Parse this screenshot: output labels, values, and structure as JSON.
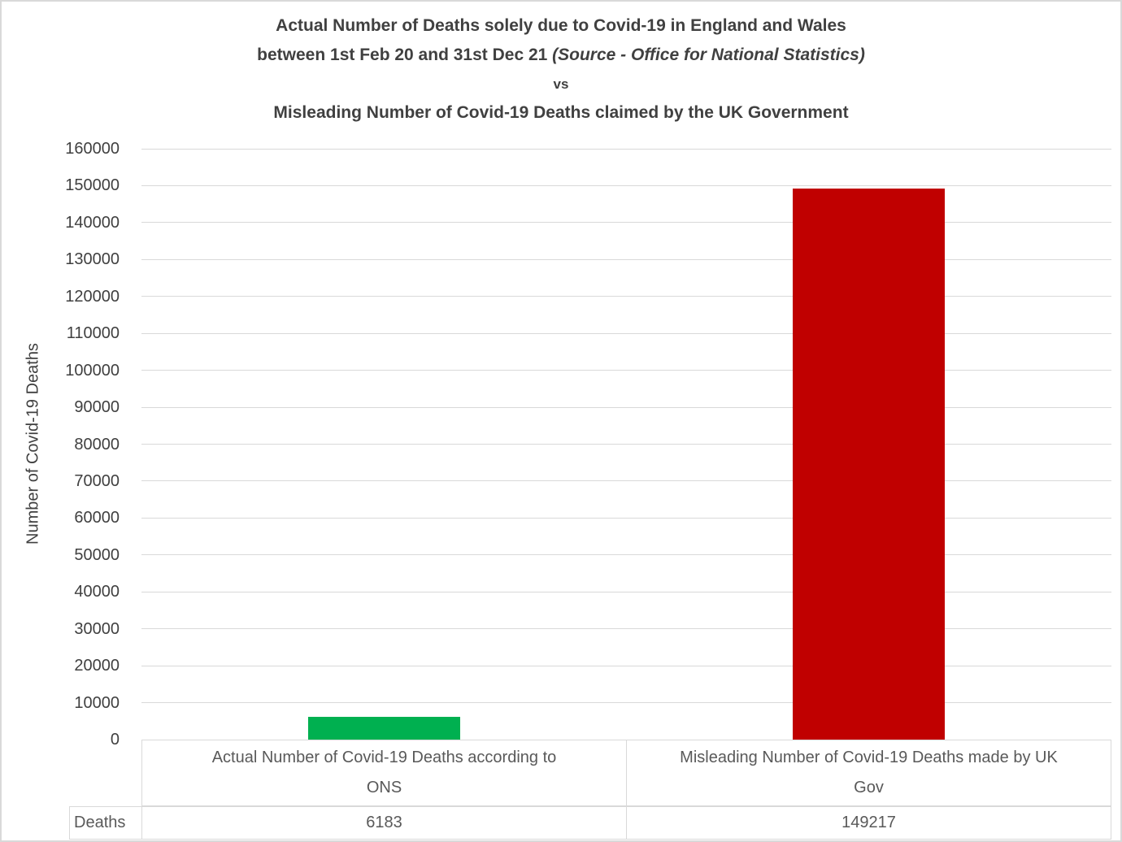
{
  "title": {
    "line1": "Actual Number of Deaths solely due to Covid-19 in England and Wales",
    "line2_normal": "between 1st Feb 20 and 31st Dec 21 ",
    "line2_italic": "(Source - Office for National Statistics)",
    "line3": "vs",
    "line4": "Misleading Number of Covid-19 Deaths claimed by the UK Government"
  },
  "chart_data": {
    "type": "bar",
    "categories": [
      "Actual Number of Covid-19 Deaths according to ONS",
      "Misleading Number of Covid-19 Deaths made by UK Gov"
    ],
    "values": [
      6183,
      149217
    ],
    "bar_colors": [
      "#00B050",
      "#C00000"
    ],
    "title": "Actual Number of Deaths solely due to Covid-19 in England and Wales between 1st Feb 20 and 31st Dec 21 (Source - Office for National Statistics) vs Misleading Number of Covid-19 Deaths claimed by the UK Government",
    "xlabel": "",
    "ylabel": "Number of Covid-19 Deaths",
    "ylim": [
      0,
      160000
    ],
    "ytick_step": 10000,
    "grid": true,
    "legend": false,
    "data_table": {
      "row_label": "Deaths",
      "values": [
        "6183",
        "149217"
      ]
    }
  },
  "colors": {
    "grid": "#D9D9D9",
    "border": "#D9D9D9",
    "title_text": "#404040",
    "axis_text": "#404040",
    "table_text": "#595959"
  }
}
